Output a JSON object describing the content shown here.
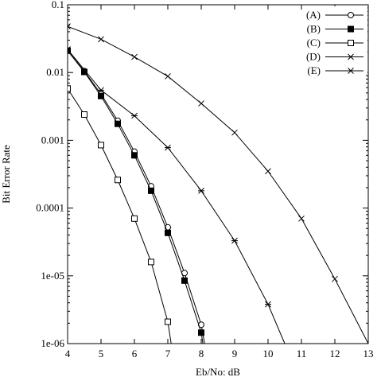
{
  "chart_data": {
    "type": "line",
    "xlabel": "Eb/No: dB",
    "ylabel": "Bit Error Rate",
    "xlim": [
      4,
      13
    ],
    "ylim": [
      1e-06,
      0.1
    ],
    "yscale": "log",
    "grid": false,
    "legend_position": "top-right",
    "x_ticks": [
      "4",
      "5",
      "6",
      "7",
      "8",
      "9",
      "10",
      "11",
      "12",
      "13"
    ],
    "y_ticks": [
      {
        "value": 0.1,
        "label": "0.1"
      },
      {
        "value": 0.01,
        "label": "0.01"
      },
      {
        "value": 0.001,
        "label": "0.001"
      },
      {
        "value": 0.0001,
        "label": "0.0001"
      },
      {
        "value": 1e-05,
        "label": "1e-05"
      },
      {
        "value": 1e-06,
        "label": "1e-06"
      }
    ],
    "series": [
      {
        "name": "(A)",
        "marker": "circle-open",
        "x": [
          4,
          4.5,
          5,
          5.5,
          6,
          6.5,
          7,
          7.5,
          8,
          8.1
        ],
        "y": [
          0.021,
          0.0105,
          0.0048,
          0.00195,
          0.00068,
          0.00021,
          5.2e-05,
          1.1e-05,
          1.9e-06,
          1e-06
        ]
      },
      {
        "name": "(B)",
        "marker": "square-filled",
        "x": [
          4,
          4.5,
          5,
          5.5,
          6,
          6.5,
          7,
          7.5,
          8,
          8.05
        ],
        "y": [
          0.021,
          0.0102,
          0.0045,
          0.00175,
          0.0006,
          0.00018,
          4.3e-05,
          8.5e-06,
          1.45e-06,
          1e-06
        ]
      },
      {
        "name": "(C)",
        "marker": "square-open",
        "x": [
          4,
          4.5,
          5,
          5.5,
          6,
          6.5,
          7,
          7.1
        ],
        "y": [
          0.0058,
          0.0024,
          0.00085,
          0.00026,
          7e-05,
          1.6e-05,
          2.1e-06,
          1e-06
        ]
      },
      {
        "name": "(D)",
        "marker": "asterisk",
        "x": [
          4,
          5,
          6,
          7,
          8,
          9,
          10,
          10.5
        ],
        "y": [
          0.022,
          0.0055,
          0.0023,
          0.00078,
          0.00018,
          3.3e-05,
          3.8e-06,
          1e-06
        ]
      },
      {
        "name": "(E)",
        "marker": "cross",
        "x": [
          4,
          5,
          6,
          7,
          8,
          9,
          10,
          11,
          12,
          13
        ],
        "y": [
          0.048,
          0.031,
          0.017,
          0.0088,
          0.0035,
          0.0013,
          0.00035,
          7e-05,
          9e-06,
          1e-06
        ]
      }
    ]
  }
}
